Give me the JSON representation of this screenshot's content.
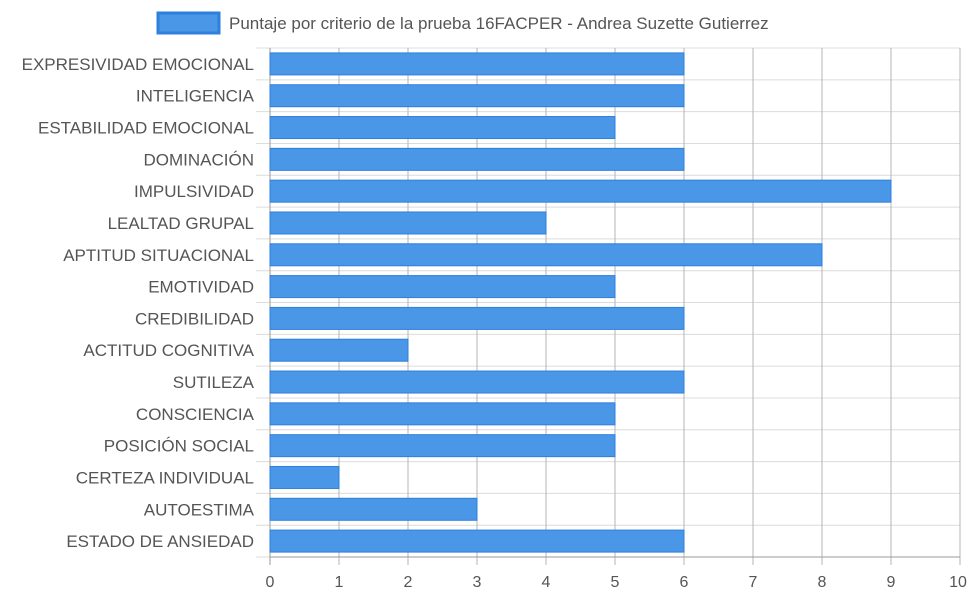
{
  "chart_data": {
    "type": "bar",
    "orientation": "horizontal",
    "categories": [
      "EXPRESIVIDAD EMOCIONAL",
      "INTELIGENCIA",
      "ESTABILIDAD EMOCIONAL",
      "DOMINACIÓN",
      "IMPULSIVIDAD",
      "LEALTAD GRUPAL",
      "APTITUD SITUACIONAL",
      "EMOTIVIDAD",
      "CREDIBILIDAD",
      "ACTITUD COGNITIVA",
      "SUTILEZA",
      "CONSCIENCIA",
      "POSICIÓN SOCIAL",
      "CERTEZA INDIVIDUAL",
      "AUTOESTIMA",
      "ESTADO DE ANSIEDAD"
    ],
    "series": [
      {
        "name": "Puntaje por criterio de la prueba 16FACPER - Andrea Suzette Gutierrez",
        "values": [
          6,
          6,
          5,
          6,
          9,
          4,
          8,
          5,
          6,
          2,
          6,
          5,
          5,
          1,
          3,
          6
        ]
      }
    ],
    "xlim": [
      0,
      10
    ],
    "x_ticks": [
      "0",
      "1",
      "2",
      "3",
      "4",
      "5",
      "6",
      "7",
      "8",
      "9",
      "10"
    ],
    "grid": true,
    "legend_position": "top",
    "colors": {
      "bar_fill": "#4a97e8",
      "bar_stroke": "#2f7fdc",
      "grid": "#dcdcdc",
      "axis_text": "#555555",
      "legend_text": "#555555"
    }
  }
}
